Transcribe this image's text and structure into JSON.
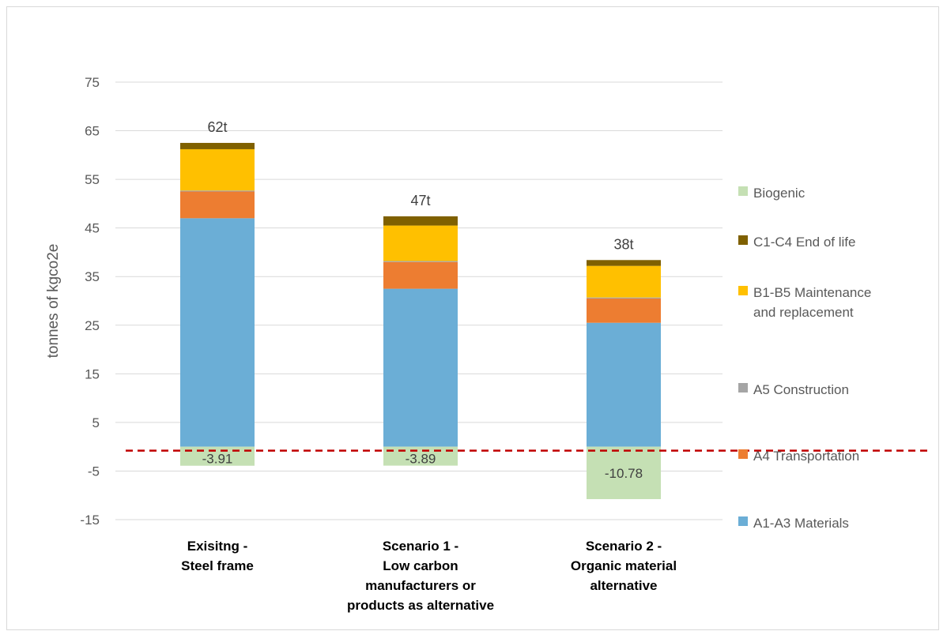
{
  "chart_data": {
    "type": "bar",
    "stacked": true,
    "title": "",
    "xlabel": "",
    "ylabel": "tonnes of kgco2e",
    "ylim": [
      -15,
      75
    ],
    "yticks": [
      75,
      65,
      55,
      45,
      35,
      25,
      15,
      5,
      -5,
      -15
    ],
    "grid": true,
    "legend_position": "right",
    "categories": [
      [
        "Exisitng -",
        "Steel frame"
      ],
      [
        "Scenario 1 -",
        "Low carbon",
        "manufacturers or",
        "products as alternative"
      ],
      [
        "Scenario 2 -",
        "Organic material",
        "alternative"
      ]
    ],
    "series": [
      {
        "name": "A1-A3 Materials",
        "color": "#6baed6",
        "values": [
          47.0,
          32.5,
          25.5
        ]
      },
      {
        "name": "A4 Transportation",
        "color": "#ed7d31",
        "values": [
          5.5,
          5.5,
          5.0
        ]
      },
      {
        "name": "A5 Construction",
        "color": "#a5a5a5",
        "values": [
          0.2,
          0.2,
          0.2
        ]
      },
      {
        "name": "B1-B5 Maintenance and replacement",
        "color": "#ffc000",
        "values": [
          8.5,
          7.3,
          6.5
        ]
      },
      {
        "name": "C1-C4 End of life",
        "color": "#7f6000",
        "values": [
          1.3,
          1.9,
          1.2
        ]
      },
      {
        "name": "Biogenic",
        "color": "#c5e0b4",
        "values": [
          -3.91,
          -3.89,
          -10.78
        ]
      }
    ],
    "legend_order": [
      "Biogenic",
      "C1-C4 End of life",
      "B1-B5 Maintenance and replacement",
      "A5 Construction",
      "A4 Transportation",
      "A1-A3 Materials"
    ],
    "legend_labels": {
      "Biogenic": [
        "Biogenic"
      ],
      "C1-C4 End of life": [
        "C1-C4 End of life"
      ],
      "B1-B5 Maintenance and replacement": [
        "B1-B5 Maintenance",
        "and replacement"
      ],
      "A5 Construction": [
        "A5 Construction"
      ],
      "A4 Transportation": [
        "A4 Transportation"
      ],
      "A1-A3 Materials": [
        "A1-A3 Materials"
      ]
    },
    "total_labels": [
      "62t",
      "47t",
      "38t"
    ],
    "negative_labels": [
      "-3.91",
      "-3.89",
      "-10.78"
    ],
    "reference_line": {
      "value": -0.8,
      "color": "#c00000",
      "style": "dashed"
    }
  }
}
